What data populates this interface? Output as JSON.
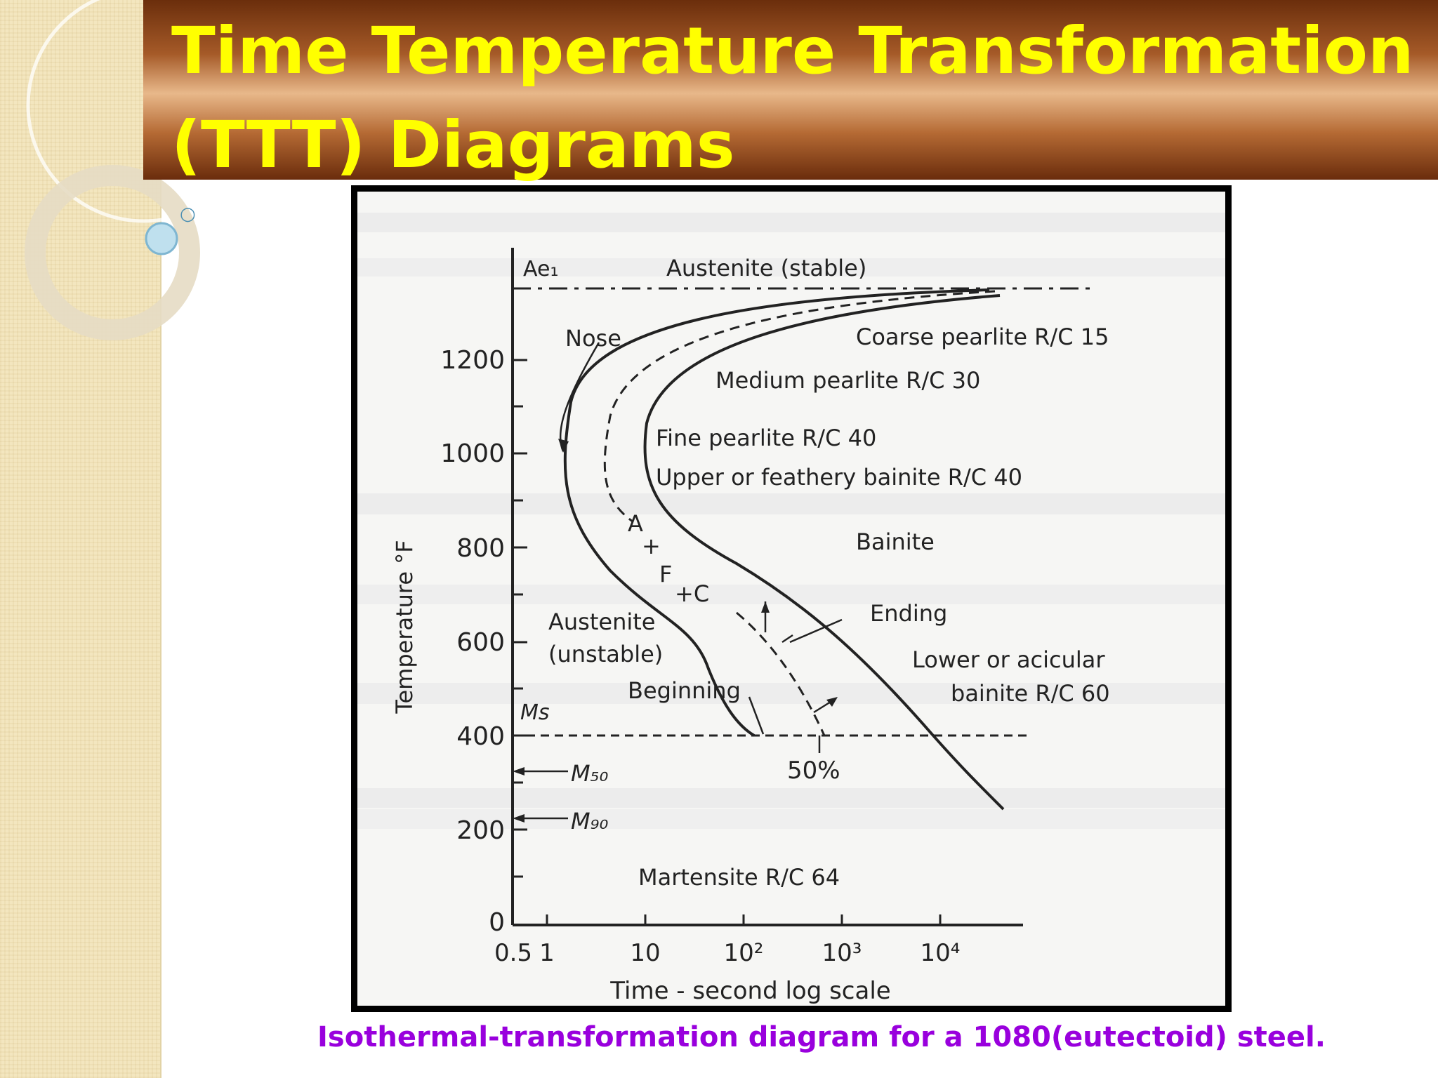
{
  "slide": {
    "title": "Time Temperature Transformation\n(TTT) Diagrams",
    "caption": "Isothermal-transformation diagram for a 1080(eutectoid) steel.",
    "bullet_marker": "○"
  },
  "diagram": {
    "y_axis_label": "Temperature °F",
    "x_axis_label": "Time - second log scale",
    "y_ticks": [
      "1200",
      "1000",
      "800",
      "600",
      "400",
      "200",
      "0"
    ],
    "x_ticks": [
      "0.5",
      "1",
      "10",
      "10²",
      "10³",
      "10⁴"
    ],
    "labels": {
      "ae1": "Ae₁",
      "austenite_stable": "Austenite (stable)",
      "nose": "Nose",
      "coarse_pearlite": "Coarse pearlite R/C 15",
      "medium_pearlite": "Medium pearlite R/C 30",
      "fine_pearlite": "Fine pearlite R/C 40",
      "upper_bainite": "Upper or feathery bainite R/C 40",
      "bainite": "Bainite",
      "a": "A",
      "plus1": "+",
      "f": "F",
      "plus_c": "+C",
      "ending": "Ending",
      "austenite_unstable_1": "Austenite",
      "austenite_unstable_2": "(unstable)",
      "beginning": "Beginning",
      "lower_bainite_1": "Lower or acicular",
      "lower_bainite_2": "bainite R/C 60",
      "ms": "Ms",
      "m50": "M₅₀",
      "m90": "M₉₀",
      "fifty_percent": "50%",
      "martensite": "Martensite R/C 64"
    }
  }
}
